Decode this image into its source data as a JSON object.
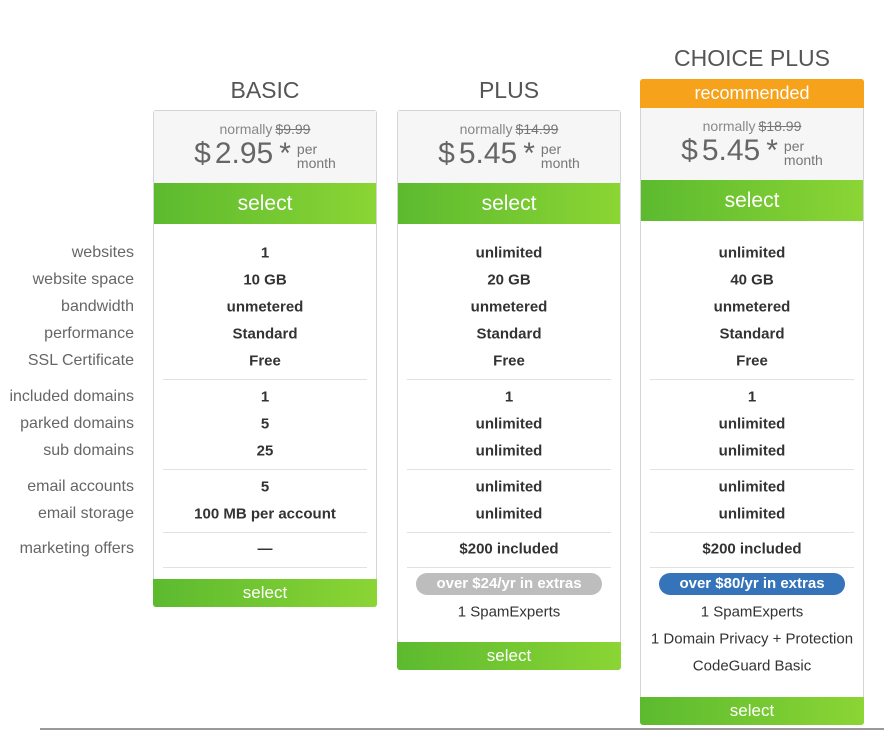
{
  "feature_labels": [
    "websites",
    "website space",
    "bandwidth",
    "performance",
    "SSL Certificate",
    "included domains",
    "parked domains",
    "sub domains",
    "email accounts",
    "email storage",
    "marketing offers"
  ],
  "plans": [
    {
      "name": "BASIC",
      "normally_label": "normally",
      "old_price": "$9.99",
      "currency": "$",
      "price": "2.95",
      "asterisk": "*",
      "per": "per",
      "month": "month",
      "select_label": "select",
      "values": [
        "1",
        "10 GB",
        "unmetered",
        "Standard",
        "Free",
        "1",
        "5",
        "25",
        "5",
        "100 MB per account",
        "—"
      ],
      "extras_badge": null,
      "extras": []
    },
    {
      "name": "PLUS",
      "normally_label": "normally",
      "old_price": "$14.99",
      "currency": "$",
      "price": "5.45",
      "asterisk": "*",
      "per": "per",
      "month": "month",
      "select_label": "select",
      "values": [
        "unlimited",
        "20 GB",
        "unmetered",
        "Standard",
        "Free",
        "1",
        "unlimited",
        "unlimited",
        "unlimited",
        "unlimited",
        "$200 included"
      ],
      "extras_badge": "over $24/yr in extras",
      "badge_color": "#bdbdbd",
      "extras": [
        "1 SpamExperts"
      ]
    },
    {
      "name": "CHOICE PLUS",
      "recommended": "recommended",
      "normally_label": "normally",
      "old_price": "$18.99",
      "currency": "$",
      "price": "5.45",
      "asterisk": "*",
      "per": "per",
      "month": "month",
      "select_label": "select",
      "values": [
        "unlimited",
        "40 GB",
        "unmetered",
        "Standard",
        "Free",
        "1",
        "unlimited",
        "unlimited",
        "unlimited",
        "unlimited",
        "$200 included"
      ],
      "extras_badge": "over $80/yr in extras",
      "badge_color": "#3574b9",
      "extras": [
        "1 SpamExperts",
        "1 Domain Privacy + Protection",
        "CodeGuard Basic"
      ]
    }
  ],
  "colors": {
    "select_green": "#6cc530",
    "recommended_orange": "#f7a21b"
  }
}
